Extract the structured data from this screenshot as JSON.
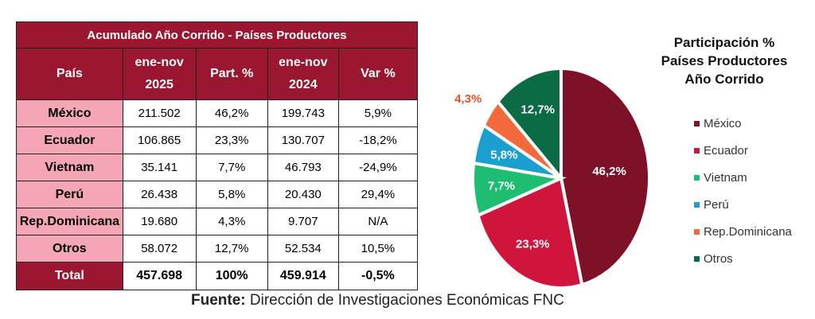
{
  "table": {
    "title": "Acumulado Año Corrido - Países Productores",
    "headers": [
      [
        "País"
      ],
      [
        "ene-nov",
        "2025"
      ],
      [
        "Part. %"
      ],
      [
        "ene-nov",
        "2024"
      ],
      [
        "Var %"
      ]
    ],
    "rows": [
      [
        "México",
        "211.502",
        "46,2%",
        "199.743",
        "5,9%"
      ],
      [
        "Ecuador",
        "106.865",
        "23,3%",
        "130.707",
        "-18,2%"
      ],
      [
        "Vietnam",
        "35.141",
        "7,7%",
        "46.793",
        "-24,9%"
      ],
      [
        "Perú",
        "26.438",
        "5,8%",
        "20.430",
        "29,4%"
      ],
      [
        "Rep.Dominicana",
        "19.680",
        "4,3%",
        "9.707",
        "N/A"
      ],
      [
        "Otros",
        "58.072",
        "12,7%",
        "52.534",
        "10,5%"
      ]
    ],
    "total": [
      "Total",
      "457.698",
      "100%",
      "459.914",
      "-0,5%"
    ]
  },
  "footer": {
    "label": "Fuente:",
    "text": " Dirección de Investigaciones Económicas FNC"
  },
  "colors": {
    "header": "#9b1630",
    "pais_column": "#f4a6b4"
  },
  "chart_data": {
    "type": "pie",
    "title_lines": [
      "Participación %",
      "Países Productores",
      "Año Corrido"
    ],
    "legend_position": "right",
    "slices": [
      {
        "name": "México",
        "value": 46.2,
        "label": "46,2%",
        "color": "#7d1128",
        "label_color": "#ffffff"
      },
      {
        "name": "Ecuador",
        "value": 23.3,
        "label": "23,3%",
        "color": "#d0153c",
        "label_color": "#ffffff"
      },
      {
        "name": "Vietnam",
        "value": 7.7,
        "label": "7,7%",
        "color": "#1ebd72",
        "label_color": "#ffffff"
      },
      {
        "name": "Perú",
        "value": 5.8,
        "label": "5,8%",
        "color": "#1a9fcf",
        "label_color": "#ffffff"
      },
      {
        "name": "Rep.Dominicana",
        "value": 4.3,
        "label": "4,3%",
        "color": "#f26a3c",
        "label_color": "#e8542a"
      },
      {
        "name": "Otros",
        "value": 12.7,
        "label": "12,7%",
        "color": "#0b6b45",
        "label_color": "#ffffff"
      }
    ]
  }
}
